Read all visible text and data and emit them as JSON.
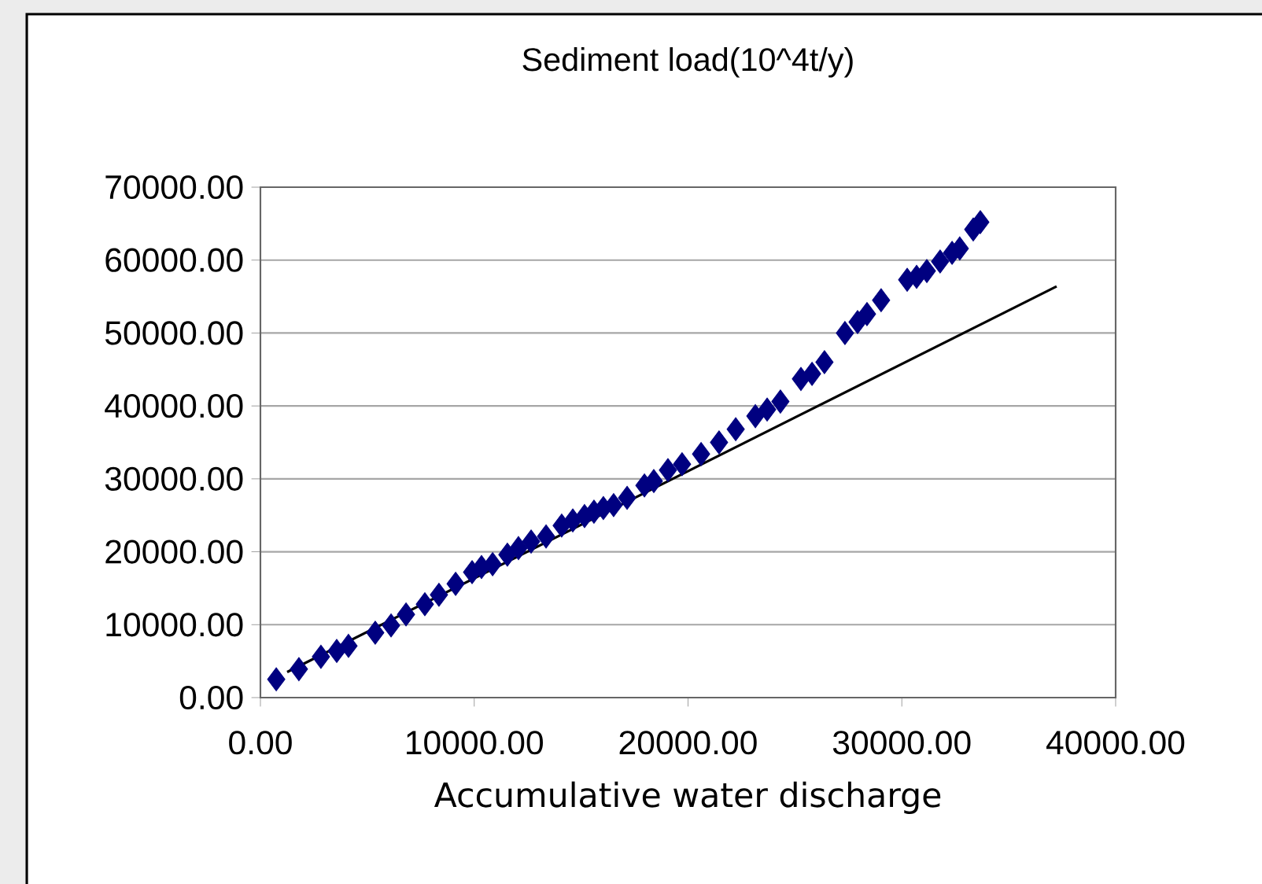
{
  "chart_data": {
    "type": "scatter",
    "title": "Sediment load(10^4t/y)",
    "xlabel": "Accumulative water discharge",
    "marker": "diamond",
    "grid": "y",
    "xlim": [
      0,
      40000
    ],
    "ylim": [
      0,
      70000
    ],
    "xticks": [
      {
        "value": 0,
        "label": "0.00"
      },
      {
        "value": 10000,
        "label": "10000.00"
      },
      {
        "value": 20000,
        "label": "20000.00"
      },
      {
        "value": 30000,
        "label": "30000.00"
      },
      {
        "value": 40000,
        "label": "40000.00"
      }
    ],
    "yticks": [
      {
        "value": 0,
        "label": "0.00"
      },
      {
        "value": 10000,
        "label": "10000.00"
      },
      {
        "value": 20000,
        "label": "20000.00"
      },
      {
        "value": 30000,
        "label": "30000.00"
      },
      {
        "value": 40000,
        "label": "40000.00"
      },
      {
        "value": 50000,
        "label": "50000.00"
      },
      {
        "value": 60000,
        "label": "60000.00"
      },
      {
        "value": 70000,
        "label": "70000.00"
      }
    ],
    "series": [
      {
        "color": "#000080",
        "x": [
          740,
          1800,
          2830,
          3570,
          4120,
          5370,
          6110,
          6810,
          7690,
          8350,
          9130,
          9900,
          10340,
          10860,
          11550,
          12070,
          12660,
          13360,
          14090,
          14610,
          15160,
          15600,
          16040,
          16520,
          17150,
          17960,
          18400,
          19060,
          19720,
          20610,
          21450,
          22230,
          23150,
          23700,
          24320,
          25280,
          25800,
          26380,
          27340,
          27930,
          28370,
          29030,
          30250,
          30690,
          31170,
          31790,
          32350,
          32710,
          33340,
          33670
        ],
        "values": [
          2500,
          3900,
          5600,
          6400,
          7100,
          8900,
          9900,
          11400,
          12800,
          14100,
          15600,
          17200,
          17900,
          18300,
          19600,
          20500,
          21400,
          22100,
          23600,
          24300,
          24900,
          25500,
          26000,
          26400,
          27400,
          29100,
          29700,
          31200,
          32000,
          33400,
          35000,
          36800,
          38600,
          39500,
          40600,
          43700,
          44400,
          46000,
          50000,
          51500,
          52600,
          54500,
          57300,
          57700,
          58500,
          59800,
          61000,
          61600,
          64200,
          65200
        ]
      },
      {
        "type": "line",
        "color": "#000000",
        "marker": "none",
        "x": [
          1250,
          37240
        ],
        "values": [
          3500,
          56400
        ]
      }
    ]
  }
}
